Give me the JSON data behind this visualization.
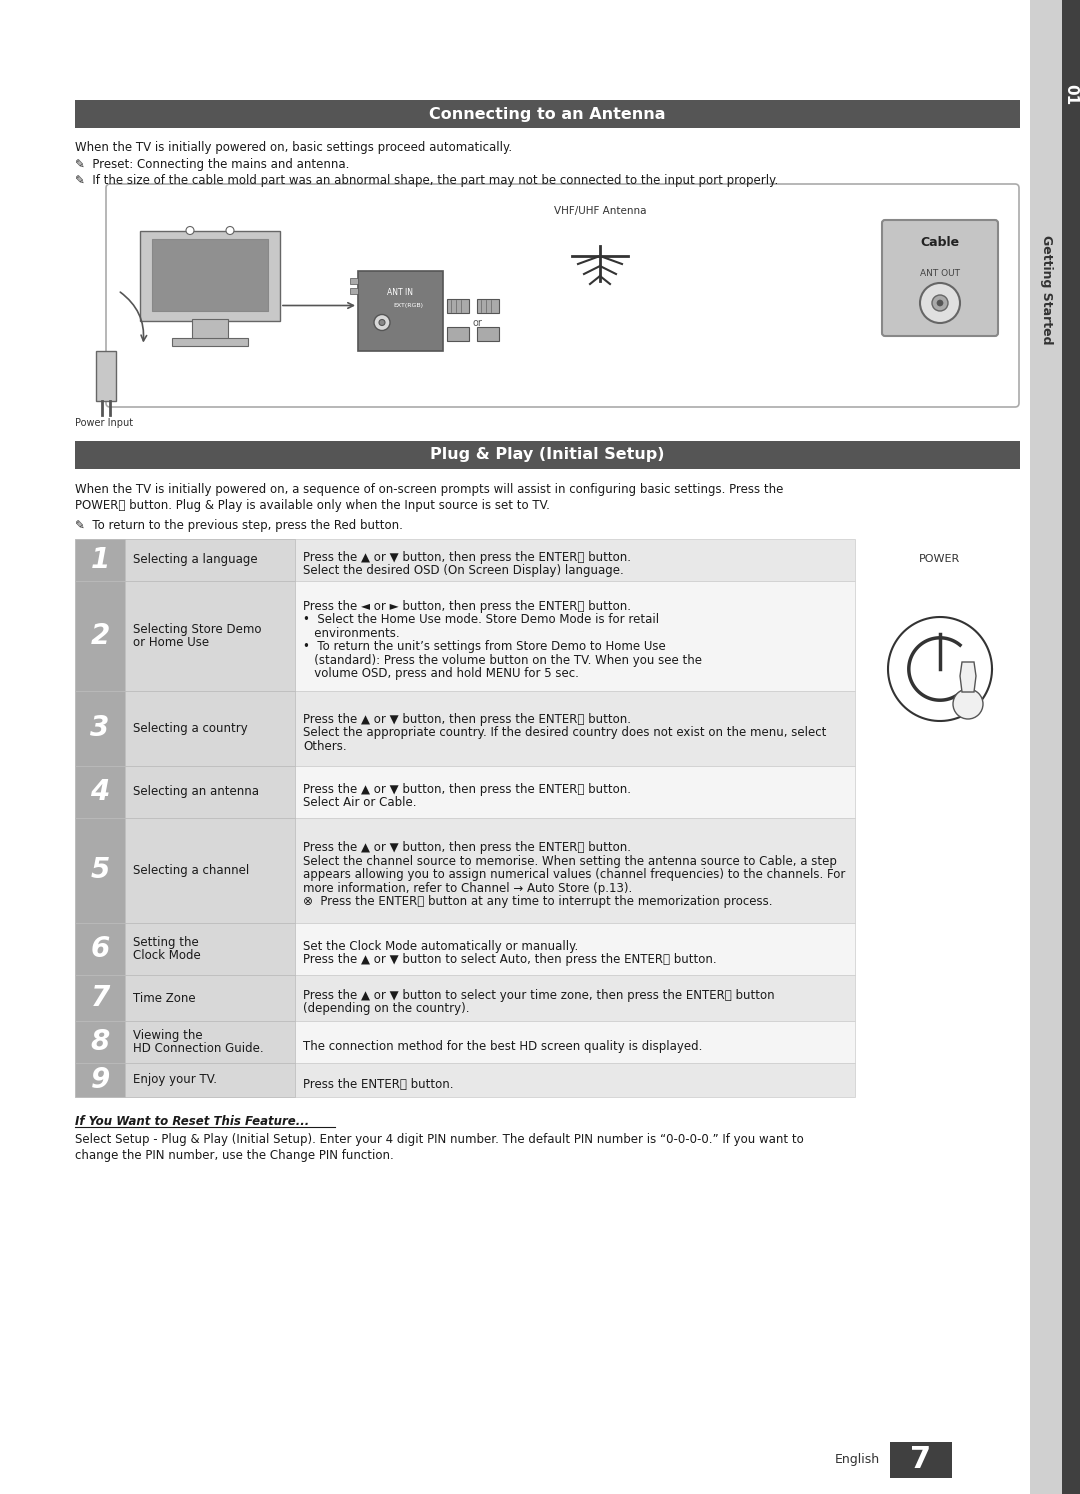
{
  "bg_color": "#ffffff",
  "header_bg": "#555555",
  "header_text_color": "#ffffff",
  "section_header1": "Connecting to an Antenna",
  "section_header2": "Plug & Play (Initial Setup)",
  "antenna_text1": "When the TV is initially powered on, basic settings proceed automatically.",
  "antenna_text2": "Preset: Connecting the mains and antenna.",
  "antenna_text3": "If the size of the cable mold part was an abnormal shape, the part may not be connected to the input port properly.",
  "plug_intro1": "When the TV is initially powered on, a sequence of on-screen prompts will assist in configuring basic settings. Press the",
  "plug_note": "To return to the previous step, press the Red button.",
  "steps": [
    {
      "num": "1",
      "label": "Selecting a language",
      "label_bold": [],
      "desc_lines": [
        {
          "t": "Press the ▲ or ▼ button, then press the ENTER⮐ button.",
          "bold_parts": []
        },
        {
          "t": "Select the desired OSD (On Screen Display) language.",
          "bold_parts": []
        }
      ]
    },
    {
      "num": "2",
      "label": "Selecting Store Demo\nor Home Use",
      "label_bold": [
        "Store Demo",
        "Home Use"
      ],
      "desc_lines": [
        {
          "t": "Press the ◄ or ► button, then press the ENTER⮐ button.",
          "bold_parts": []
        },
        {
          "t": "•  Select the Home Use mode. Store Demo Mode is for retail",
          "bold_parts": [
            "Home Use",
            "Store Demo"
          ]
        },
        {
          "t": "   environments.",
          "bold_parts": []
        },
        {
          "t": "•  To return the unit’s settings from Store Demo to Home Use",
          "bold_parts": [
            "Store Demo",
            "Home Use"
          ]
        },
        {
          "t": "   (standard): Press the volume button on the TV. When you see the",
          "bold_parts": []
        },
        {
          "t": "   volume OSD, press and hold MENU for 5 sec.",
          "bold_parts": [
            "MENU"
          ]
        }
      ]
    },
    {
      "num": "3",
      "label": "Selecting a country",
      "label_bold": [],
      "desc_lines": [
        {
          "t": "Press the ▲ or ▼ button, then press the ENTER⮐ button.",
          "bold_parts": []
        },
        {
          "t": "Select the appropriate country. If the desired country does not exist on the menu, select",
          "bold_parts": []
        },
        {
          "t": "Others.",
          "bold_parts": [
            "Others."
          ]
        }
      ]
    },
    {
      "num": "4",
      "label": "Selecting an antenna",
      "label_bold": [],
      "desc_lines": [
        {
          "t": "Press the ▲ or ▼ button, then press the ENTER⮐ button.",
          "bold_parts": []
        },
        {
          "t": "Select Air or Cable.",
          "bold_parts": [
            "Air",
            "Cable."
          ]
        }
      ]
    },
    {
      "num": "5",
      "label": "Selecting a channel",
      "label_bold": [],
      "desc_lines": [
        {
          "t": "Press the ▲ or ▼ button, then press the ENTER⮐ button.",
          "bold_parts": []
        },
        {
          "t": "Select the channel source to memorise. When setting the antenna source to Cable, a step",
          "bold_parts": [
            "Cable,"
          ]
        },
        {
          "t": "appears allowing you to assign numerical values (channel frequencies) to the channels. For",
          "bold_parts": []
        },
        {
          "t": "more information, refer to Channel → Auto Store (p.13).",
          "bold_parts": [
            "Channel → Auto Store"
          ]
        },
        {
          "t": "⊗  Press the ENTER⮐ button at any time to interrupt the memorization process.",
          "bold_parts": []
        }
      ]
    },
    {
      "num": "6",
      "label": "Setting the\nClock Mode",
      "label_bold": [
        "Clock Mode"
      ],
      "desc_lines": [
        {
          "t": "Set the Clock Mode automatically or manually.",
          "bold_parts": [
            "Clock Mode"
          ]
        },
        {
          "t": "Press the ▲ or ▼ button to select Auto, then press the ENTER⮐ button.",
          "bold_parts": [
            "Auto,"
          ]
        }
      ]
    },
    {
      "num": "7",
      "label": "Time Zone",
      "label_bold": [],
      "desc_lines": [
        {
          "t": "Press the ▲ or ▼ button to select your time zone, then press the ENTER⮐ button",
          "bold_parts": []
        },
        {
          "t": "(depending on the country).",
          "bold_parts": []
        }
      ]
    },
    {
      "num": "8",
      "label": "Viewing the\nHD Connection Guide.",
      "label_bold": [
        "HD Connection Guide."
      ],
      "desc_lines": [
        {
          "t": "The connection method for the best HD screen quality is displayed.",
          "bold_parts": []
        }
      ]
    },
    {
      "num": "9",
      "label": "Enjoy your TV.",
      "label_bold": [
        "Enjoy your TV."
      ],
      "desc_lines": [
        {
          "t": "Press the ENTER⮐ button.",
          "bold_parts": [
            "ENTER⮐"
          ]
        }
      ]
    }
  ],
  "reset_title": "If You Want to Reset This Feature...",
  "reset_lines": [
    "Select Setup - Plug & Play (Initial Setup). Enter your 4 digit PIN number. The default PIN number is “0-0-0-0.” If you want to",
    "change the PIN number, use the Change PIN function."
  ],
  "page_num": "7",
  "page_lang": "English",
  "sidebar_label": "Getting Started",
  "sidebar_num": "01"
}
